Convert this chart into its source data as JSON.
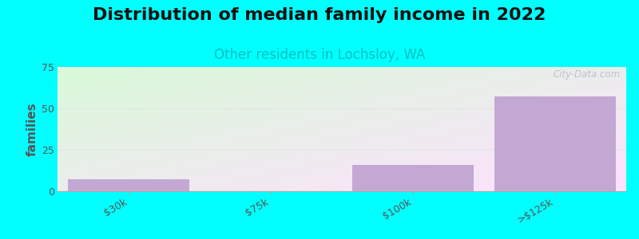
{
  "title": "Distribution of median family income in 2022",
  "subtitle": "Other residents in Lochsloy, WA",
  "categories": [
    "$30k",
    "$75k",
    "$100k",
    ">$125k"
  ],
  "values": [
    7,
    0,
    16,
    57
  ],
  "bar_color": "#c4a8d4",
  "bar_edge_color": "#c4a8d4",
  "background_color": "#00ffff",
  "ylabel": "families",
  "ylim": [
    0,
    75
  ],
  "yticks": [
    0,
    25,
    50,
    75
  ],
  "title_fontsize": 16,
  "subtitle_fontsize": 12,
  "subtitle_color": "#00c0c0",
  "ylabel_fontsize": 11,
  "tick_fontsize": 9,
  "watermark": "City-Data.com",
  "watermark_color": "#b0bcc8",
  "grid_color": "#e0e8e0",
  "grid_linewidth": 1.0
}
